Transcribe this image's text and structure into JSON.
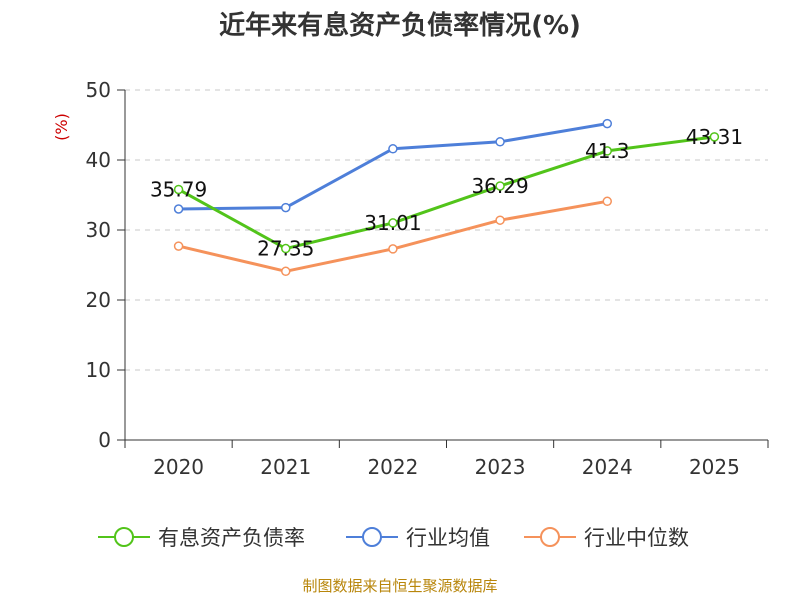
{
  "chart_data": {
    "type": "line",
    "title": "近年来有息资产负债率情况(%)",
    "ylabel": "(%)",
    "xlabel": "",
    "categories": [
      "2020",
      "2021",
      "2022",
      "2023",
      "2024",
      "2025"
    ],
    "ylim": [
      0,
      50
    ],
    "yticks": [
      0,
      10,
      20,
      30,
      40,
      50
    ],
    "grid": true,
    "legend_position": "bottom",
    "series": [
      {
        "name": "有息资产负债率",
        "color": "#52c41a",
        "values": [
          35.79,
          27.35,
          31.01,
          36.29,
          41.3,
          43.31
        ],
        "labels": [
          "35.79",
          "27.35",
          "31.01",
          "36.29",
          "41.3",
          "43.31"
        ]
      },
      {
        "name": "行业均值",
        "color": "#4e7fd9",
        "values": [
          33.0,
          33.2,
          41.6,
          42.6,
          45.2,
          null
        ]
      },
      {
        "name": "行业中位数",
        "color": "#f5925b",
        "values": [
          27.7,
          24.1,
          27.3,
          31.4,
          34.1,
          null
        ]
      }
    ]
  },
  "source": "制图数据来自恒生聚源数据库"
}
